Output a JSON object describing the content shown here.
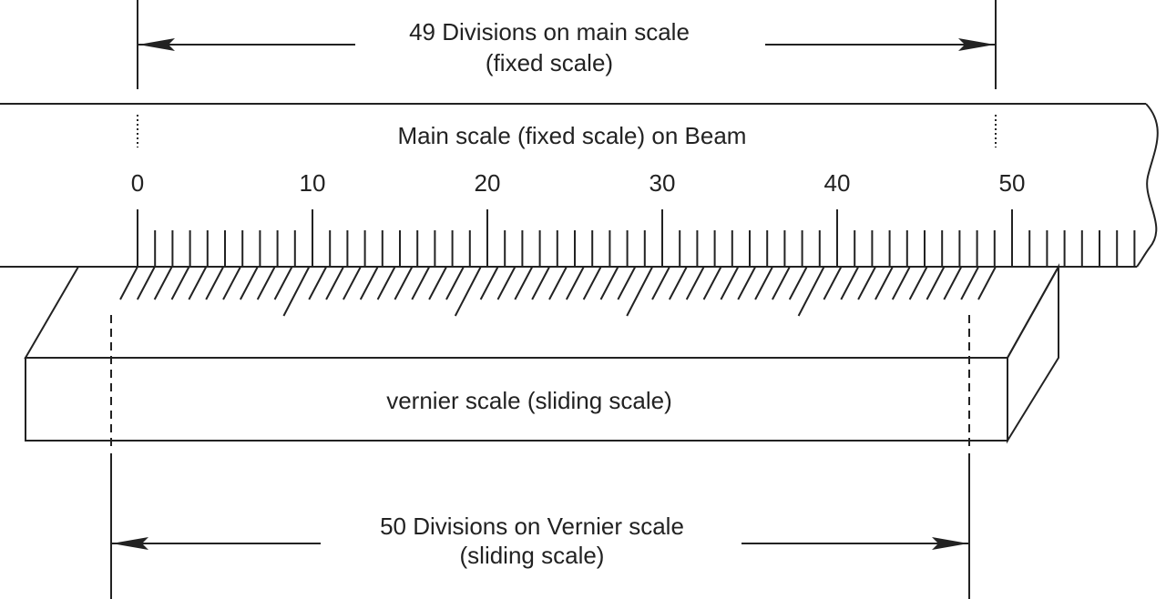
{
  "top_annotation": {
    "line1": "49 Divisions on main scale",
    "line2": "(fixed scale)"
  },
  "main_scale": {
    "title": "Main scale (fixed scale) on Beam",
    "tick_labels": [
      "0",
      "10",
      "20",
      "30",
      "40",
      "50"
    ],
    "minor_division_count": 57
  },
  "vernier": {
    "label": "vernier scale (sliding scale)",
    "division_count": 50
  },
  "bottom_annotation": {
    "line1": "50 Divisions on Vernier scale",
    "line2": "(sliding scale)"
  },
  "colors": {
    "ink": "#222222",
    "background": "#ffffff"
  }
}
